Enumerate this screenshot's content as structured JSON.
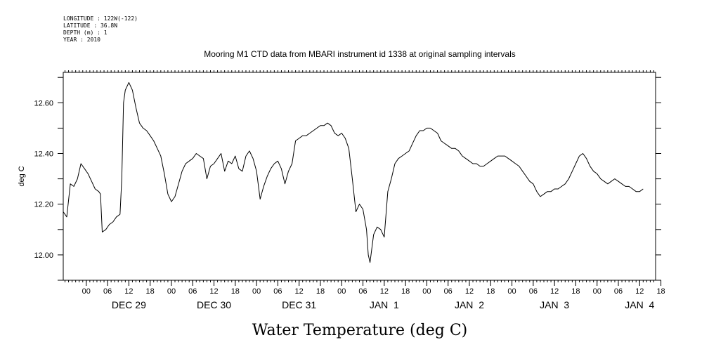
{
  "metadata_lines": [
    "LONGITUDE : 122W(-122)",
    "LATITUDE : 36.8N",
    "DEPTH (m) : 1",
    "YEAR : 2010"
  ],
  "chart_data": {
    "type": "line",
    "title": "Mooring M1 CTD data from MBARI instrument id 1338 at original sampling intervals",
    "xlabel": "Water Temperature (deg C)",
    "ylabel": "deg C",
    "ylim": [
      11.9,
      12.72
    ],
    "xlim_hours": [
      -6.5,
      160.5
    ],
    "y_ticks": [
      "12.00",
      "12.20",
      "12.40",
      "12.60"
    ],
    "x_ticks": [
      "00",
      "06",
      "12",
      "18",
      "00",
      "06",
      "12",
      "18",
      "00",
      "06",
      "12",
      "18",
      "00",
      "06",
      "12",
      "18",
      "00",
      "06",
      "12",
      "18",
      "00",
      "06",
      "12",
      "18",
      "00",
      "06",
      "12",
      "18"
    ],
    "day_labels": [
      "DEC 29",
      "DEC 30",
      "DEC 31",
      "JAN  1",
      "JAN  2",
      "JAN  3",
      "JAN  4"
    ],
    "series": [
      {
        "points": [
          [
            "Dec 28 17:30",
            12.17
          ],
          [
            "Dec 28 18:30",
            12.15
          ],
          [
            "Dec 28 19:30",
            12.28
          ],
          [
            "Dec 28 20:30",
            12.27
          ],
          [
            "Dec 28 21:30",
            12.3
          ],
          [
            "Dec 28 22:30",
            12.36
          ],
          [
            "Dec 28 23:30",
            12.34
          ],
          [
            "Dec 29 00:30",
            12.32
          ],
          [
            "Dec 29 01:30",
            12.29
          ],
          [
            "Dec 29 02:30",
            12.26
          ],
          [
            "Dec 29 03:30",
            12.25
          ],
          [
            "Dec 29 04:00",
            12.24
          ],
          [
            "Dec 29 04:30",
            12.09
          ],
          [
            "Dec 29 05:30",
            12.1
          ],
          [
            "Dec 29 06:30",
            12.12
          ],
          [
            "Dec 29 07:30",
            12.13
          ],
          [
            "Dec 29 08:30",
            12.15
          ],
          [
            "Dec 29 09:30",
            12.16
          ],
          [
            "Dec 29 10:00",
            12.3
          ],
          [
            "Dec 29 10:30",
            12.6
          ],
          [
            "Dec 29 11:00",
            12.65
          ],
          [
            "Dec 29 12:00",
            12.68
          ],
          [
            "Dec 29 13:00",
            12.65
          ],
          [
            "Dec 29 14:00",
            12.58
          ],
          [
            "Dec 29 15:00",
            12.52
          ],
          [
            "Dec 29 16:00",
            12.5
          ],
          [
            "Dec 29 17:00",
            12.49
          ],
          [
            "Dec 29 18:00",
            12.47
          ],
          [
            "Dec 29 19:00",
            12.45
          ],
          [
            "Dec 29 20:00",
            12.42
          ],
          [
            "Dec 29 21:00",
            12.39
          ],
          [
            "Dec 29 22:00",
            12.32
          ],
          [
            "Dec 29 23:00",
            12.24
          ],
          [
            "Dec 30 00:00",
            12.21
          ],
          [
            "Dec 30 01:00",
            12.23
          ],
          [
            "Dec 30 02:00",
            12.28
          ],
          [
            "Dec 30 03:00",
            12.33
          ],
          [
            "Dec 30 04:00",
            12.36
          ],
          [
            "Dec 30 05:00",
            12.37
          ],
          [
            "Dec 30 06:00",
            12.38
          ],
          [
            "Dec 30 07:00",
            12.4
          ],
          [
            "Dec 30 08:00",
            12.39
          ],
          [
            "Dec 30 09:00",
            12.38
          ],
          [
            "Dec 30 10:00",
            12.3
          ],
          [
            "Dec 30 11:00",
            12.35
          ],
          [
            "Dec 30 12:00",
            12.36
          ],
          [
            "Dec 30 13:00",
            12.38
          ],
          [
            "Dec 30 14:00",
            12.4
          ],
          [
            "Dec 30 15:00",
            12.33
          ],
          [
            "Dec 30 16:00",
            12.37
          ],
          [
            "Dec 30 17:00",
            12.36
          ],
          [
            "Dec 30 18:00",
            12.39
          ],
          [
            "Dec 30 19:00",
            12.34
          ],
          [
            "Dec 30 20:00",
            12.33
          ],
          [
            "Dec 30 21:00",
            12.39
          ],
          [
            "Dec 30 22:00",
            12.41
          ],
          [
            "Dec 30 23:00",
            12.38
          ],
          [
            "Dec 31 00:00",
            12.33
          ],
          [
            "Dec 31 01:00",
            12.22
          ],
          [
            "Dec 31 02:00",
            12.27
          ],
          [
            "Dec 31 03:00",
            12.31
          ],
          [
            "Dec 31 04:00",
            12.34
          ],
          [
            "Dec 31 05:00",
            12.36
          ],
          [
            "Dec 31 06:00",
            12.37
          ],
          [
            "Dec 31 07:00",
            12.34
          ],
          [
            "Dec 31 08:00",
            12.28
          ],
          [
            "Dec 31 09:00",
            12.33
          ],
          [
            "Dec 31 10:00",
            12.36
          ],
          [
            "Dec 31 11:00",
            12.45
          ],
          [
            "Dec 31 12:00",
            12.46
          ],
          [
            "Dec 31 13:00",
            12.47
          ],
          [
            "Dec 31 14:00",
            12.47
          ],
          [
            "Dec 31 15:00",
            12.48
          ],
          [
            "Dec 31 16:00",
            12.49
          ],
          [
            "Dec 31 17:00",
            12.5
          ],
          [
            "Dec 31 18:00",
            12.51
          ],
          [
            "Dec 31 19:00",
            12.51
          ],
          [
            "Dec 31 20:00",
            12.52
          ],
          [
            "Dec 31 21:00",
            12.51
          ],
          [
            "Dec 31 22:00",
            12.48
          ],
          [
            "Dec 31 23:00",
            12.47
          ],
          [
            "Jan 1 00:00",
            12.48
          ],
          [
            "Jan 1 01:00",
            12.46
          ],
          [
            "Jan 1 02:00",
            12.42
          ],
          [
            "Jan 1 03:00",
            12.3
          ],
          [
            "Jan 1 04:00",
            12.17
          ],
          [
            "Jan 1 05:00",
            12.2
          ],
          [
            "Jan 1 06:00",
            12.18
          ],
          [
            "Jan 1 07:00",
            12.1
          ],
          [
            "Jan 1 07:30",
            12.0
          ],
          [
            "Jan 1 08:00",
            11.97
          ],
          [
            "Jan 1 09:00",
            12.08
          ],
          [
            "Jan 1 10:00",
            12.11
          ],
          [
            "Jan 1 11:00",
            12.1
          ],
          [
            "Jan 1 12:00",
            12.07
          ],
          [
            "Jan 1 13:00",
            12.25
          ],
          [
            "Jan 1 14:00",
            12.3
          ],
          [
            "Jan 1 15:00",
            12.36
          ],
          [
            "Jan 1 16:00",
            12.38
          ],
          [
            "Jan 1 17:00",
            12.39
          ],
          [
            "Jan 1 18:00",
            12.4
          ],
          [
            "Jan 1 19:00",
            12.41
          ],
          [
            "Jan 1 20:00",
            12.44
          ],
          [
            "Jan 1 21:00",
            12.47
          ],
          [
            "Jan 1 22:00",
            12.49
          ],
          [
            "Jan 1 23:00",
            12.49
          ],
          [
            "Jan 2 00:00",
            12.5
          ],
          [
            "Jan 2 01:00",
            12.5
          ],
          [
            "Jan 2 02:00",
            12.49
          ],
          [
            "Jan 2 03:00",
            12.48
          ],
          [
            "Jan 2 04:00",
            12.45
          ],
          [
            "Jan 2 05:00",
            12.44
          ],
          [
            "Jan 2 06:00",
            12.43
          ],
          [
            "Jan 2 07:00",
            12.42
          ],
          [
            "Jan 2 08:00",
            12.42
          ],
          [
            "Jan 2 09:00",
            12.41
          ],
          [
            "Jan 2 10:00",
            12.39
          ],
          [
            "Jan 2 11:00",
            12.38
          ],
          [
            "Jan 2 12:00",
            12.37
          ],
          [
            "Jan 2 13:00",
            12.36
          ],
          [
            "Jan 2 14:00",
            12.36
          ],
          [
            "Jan 2 15:00",
            12.35
          ],
          [
            "Jan 2 16:00",
            12.35
          ],
          [
            "Jan 2 17:00",
            12.36
          ],
          [
            "Jan 2 18:00",
            12.37
          ],
          [
            "Jan 2 19:00",
            12.38
          ],
          [
            "Jan 2 20:00",
            12.39
          ],
          [
            "Jan 2 21:00",
            12.39
          ],
          [
            "Jan 2 22:00",
            12.39
          ],
          [
            "Jan 2 23:00",
            12.38
          ],
          [
            "Jan 3 00:00",
            12.37
          ],
          [
            "Jan 3 01:00",
            12.36
          ],
          [
            "Jan 3 02:00",
            12.35
          ],
          [
            "Jan 3 03:00",
            12.33
          ],
          [
            "Jan 3 04:00",
            12.31
          ],
          [
            "Jan 3 05:00",
            12.29
          ],
          [
            "Jan 3 06:00",
            12.28
          ],
          [
            "Jan 3 07:00",
            12.25
          ],
          [
            "Jan 3 08:00",
            12.23
          ],
          [
            "Jan 3 09:00",
            12.24
          ],
          [
            "Jan 3 10:00",
            12.25
          ],
          [
            "Jan 3 11:00",
            12.25
          ],
          [
            "Jan 3 12:00",
            12.26
          ],
          [
            "Jan 3 13:00",
            12.26
          ],
          [
            "Jan 3 14:00",
            12.27
          ],
          [
            "Jan 3 15:00",
            12.28
          ],
          [
            "Jan 3 16:00",
            12.3
          ],
          [
            "Jan 3 17:00",
            12.33
          ],
          [
            "Jan 3 18:00",
            12.36
          ],
          [
            "Jan 3 19:00",
            12.39
          ],
          [
            "Jan 3 20:00",
            12.4
          ],
          [
            "Jan 3 21:00",
            12.38
          ],
          [
            "Jan 3 22:00",
            12.35
          ],
          [
            "Jan 3 23:00",
            12.33
          ],
          [
            "Jan 4 00:00",
            12.32
          ],
          [
            "Jan 4 01:00",
            12.3
          ],
          [
            "Jan 4 02:00",
            12.29
          ],
          [
            "Jan 4 03:00",
            12.28
          ],
          [
            "Jan 4 04:00",
            12.29
          ],
          [
            "Jan 4 05:00",
            12.3
          ],
          [
            "Jan 4 06:00",
            12.29
          ],
          [
            "Jan 4 07:00",
            12.28
          ],
          [
            "Jan 4 08:00",
            12.27
          ],
          [
            "Jan 4 09:00",
            12.27
          ],
          [
            "Jan 4 10:00",
            12.26
          ],
          [
            "Jan 4 11:00",
            12.25
          ],
          [
            "Jan 4 12:00",
            12.25
          ],
          [
            "Jan 4 13:00",
            12.26
          ]
        ]
      }
    ],
    "grid": false,
    "legend": "none"
  }
}
